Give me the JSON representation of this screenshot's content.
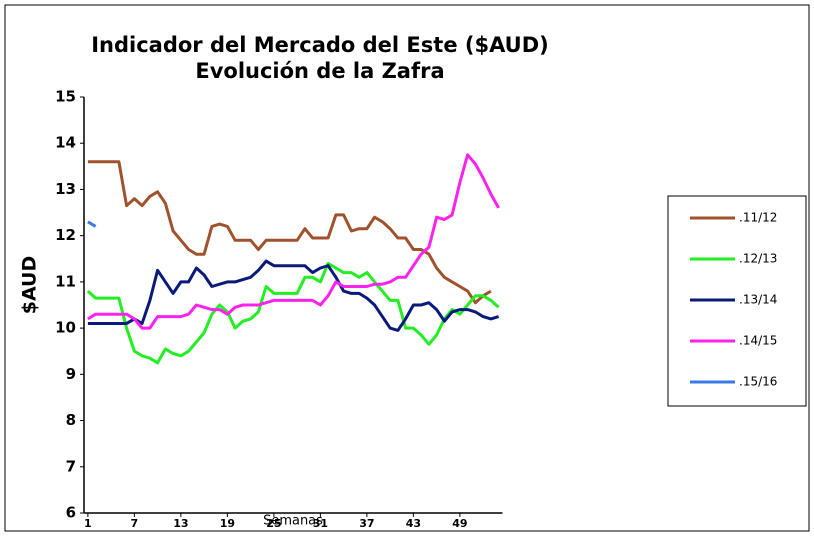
{
  "chart_data": {
    "type": "line",
    "title": "Indicador del Mercado del Este ($AUD)",
    "subtitle": "Evolución de la Zafra",
    "x_label": "Semanas",
    "y_label": "$AUD",
    "categories": [
      "1",
      null,
      null,
      null,
      null,
      null,
      "7",
      null,
      null,
      null,
      null,
      null,
      "13",
      null,
      null,
      null,
      null,
      null,
      "19",
      null,
      null,
      null,
      null,
      null,
      "25",
      null,
      null,
      null,
      null,
      null,
      "31",
      null,
      null,
      null,
      null,
      null,
      "37",
      null,
      null,
      null,
      null,
      null,
      "43",
      null,
      null,
      null,
      null,
      null,
      "49",
      null,
      null,
      null,
      null,
      null
    ],
    "ylim": [
      6,
      15
    ],
    "yticks": [
      6,
      7,
      8,
      9,
      10,
      11,
      12,
      13,
      14,
      15
    ],
    "grid": false,
    "legend": "right",
    "series": [
      {
        "name": ".11/12",
        "color": "#a0522d",
        "values": [
          13.6,
          13.6,
          13.6,
          13.6,
          13.6,
          12.65,
          12.8,
          12.65,
          12.85,
          12.95,
          12.7,
          12.1,
          11.9,
          11.7,
          11.6,
          11.6,
          12.2,
          12.25,
          12.2,
          11.9,
          11.9,
          11.9,
          11.7,
          11.9,
          11.9,
          11.9,
          11.9,
          11.9,
          12.15,
          11.95,
          11.95,
          11.95,
          12.45,
          12.45,
          12.1,
          12.15,
          12.15,
          12.4,
          12.3,
          12.15,
          11.95,
          11.95,
          11.7,
          11.7,
          11.6,
          11.3,
          11.1,
          11.0,
          10.9,
          10.8,
          10.55,
          10.7,
          10.8,
          null
        ]
      },
      {
        "name": ".12/13",
        "color": "#22ee22",
        "values": [
          10.8,
          10.65,
          10.65,
          10.65,
          10.65,
          10.0,
          9.5,
          9.4,
          9.35,
          9.25,
          9.55,
          9.45,
          9.4,
          9.5,
          9.7,
          9.9,
          10.3,
          10.5,
          10.35,
          10.0,
          10.15,
          10.2,
          10.35,
          10.9,
          10.75,
          10.75,
          10.75,
          10.75,
          11.1,
          11.1,
          11.0,
          11.4,
          11.3,
          11.2,
          11.2,
          11.1,
          11.2,
          11.0,
          10.8,
          10.6,
          10.6,
          10.0,
          10.0,
          9.85,
          9.65,
          9.85,
          10.2,
          10.4,
          10.3,
          10.5,
          10.7,
          10.7,
          10.6,
          10.45
        ]
      },
      {
        "name": ".13/14",
        "color": "#0a1a7a",
        "values": [
          10.1,
          10.1,
          10.1,
          10.1,
          10.1,
          10.1,
          10.2,
          10.1,
          10.6,
          11.25,
          11.0,
          10.75,
          11.0,
          11.0,
          11.3,
          11.15,
          10.9,
          10.95,
          11.0,
          11.0,
          11.05,
          11.1,
          11.25,
          11.45,
          11.35,
          11.35,
          11.35,
          11.35,
          11.35,
          11.2,
          11.3,
          11.35,
          11.1,
          10.8,
          10.75,
          10.75,
          10.65,
          10.5,
          10.25,
          10.0,
          9.95,
          10.2,
          10.5,
          10.5,
          10.55,
          10.4,
          10.15,
          10.35,
          10.4,
          10.4,
          10.35,
          10.25,
          10.2,
          10.25
        ]
      },
      {
        "name": ".14/15",
        "color": "#ff22ee",
        "values": [
          10.2,
          10.3,
          10.3,
          10.3,
          10.3,
          10.3,
          10.2,
          10.0,
          10.0,
          10.25,
          10.25,
          10.25,
          10.25,
          10.3,
          10.5,
          10.45,
          10.4,
          10.4,
          10.3,
          10.45,
          10.5,
          10.5,
          10.5,
          10.55,
          10.6,
          10.6,
          10.6,
          10.6,
          10.6,
          10.6,
          10.5,
          10.7,
          11.0,
          10.9,
          10.9,
          10.9,
          10.9,
          10.95,
          10.95,
          11.0,
          11.1,
          11.1,
          11.35,
          11.6,
          11.75,
          12.4,
          12.35,
          12.45,
          13.15,
          13.75,
          13.55,
          13.25,
          12.9,
          12.6
        ]
      },
      {
        "name": ".15/16",
        "color": "#3a7ae8",
        "values": [
          12.3,
          12.2,
          null,
          null,
          null,
          null,
          null,
          null,
          null,
          null,
          null,
          null,
          null,
          null,
          null,
          null,
          null,
          null,
          null,
          null,
          null,
          null,
          null,
          null,
          null,
          null,
          null,
          null,
          null,
          null,
          null,
          null,
          null,
          null,
          null,
          null,
          null,
          null,
          null,
          null,
          null,
          null,
          null,
          null,
          null,
          null,
          null,
          null,
          null,
          null,
          null,
          null,
          null,
          null
        ]
      }
    ]
  }
}
